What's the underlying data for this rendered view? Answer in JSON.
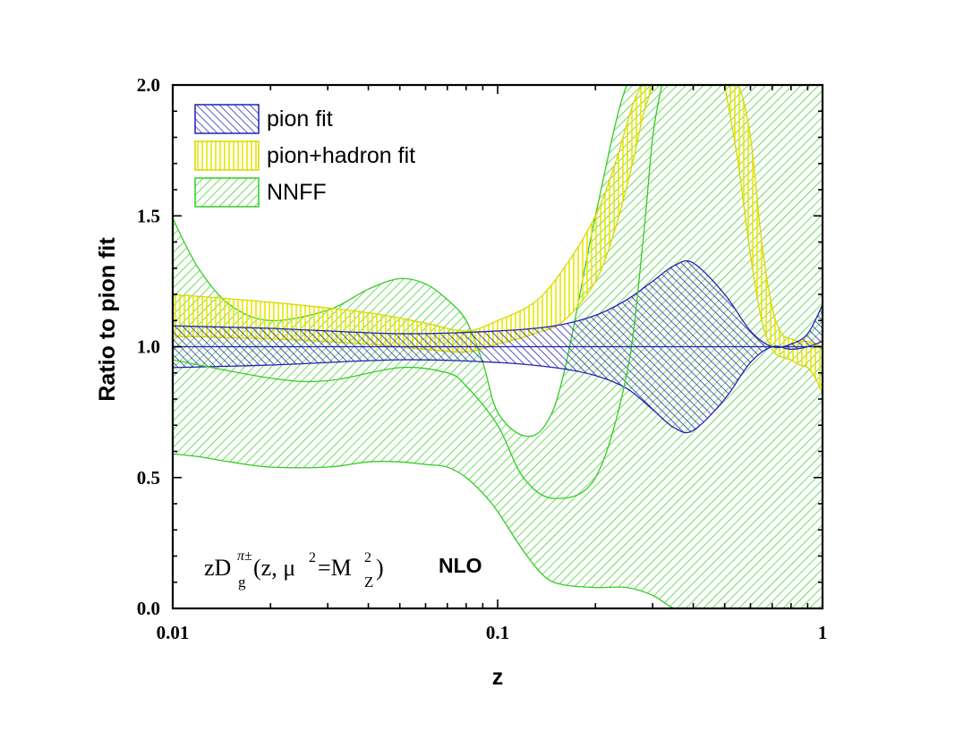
{
  "chart_data": {
    "type": "area",
    "title": "",
    "xlabel": "z",
    "ylabel": "Ratio to pion fit",
    "xscale": "log",
    "xlim": [
      0.01,
      1
    ],
    "ylim": [
      0.0,
      2.0
    ],
    "x_ticks": [
      "0.01",
      "0.1",
      "1"
    ],
    "y_ticks": [
      "0.0",
      "0.5",
      "1.0",
      "1.5",
      "2.0"
    ],
    "legend_position": "top-left",
    "colors": {
      "pion": "#1f22b4",
      "hadron": "#e8e800",
      "nnff": "#33cc22"
    },
    "series": [
      {
        "name": "pion fit",
        "color": "#1f22b4",
        "hatch": "diagonal",
        "x": [
          0.01,
          0.02,
          0.05,
          0.1,
          0.15,
          0.2,
          0.25,
          0.3,
          0.35,
          0.4,
          0.5,
          0.6,
          0.7,
          0.8,
          0.9,
          1.0
        ],
        "lower": [
          0.92,
          0.93,
          0.95,
          0.94,
          0.92,
          0.89,
          0.84,
          0.76,
          0.69,
          0.68,
          0.8,
          0.94,
          1.0,
          0.99,
          1.0,
          1.02
        ],
        "upper": [
          1.08,
          1.07,
          1.05,
          1.06,
          1.08,
          1.12,
          1.18,
          1.25,
          1.31,
          1.32,
          1.2,
          1.06,
          1.0,
          1.01,
          1.05,
          1.16
        ]
      },
      {
        "name": "pion+hadron fit",
        "color": "#e8e800",
        "hatch": "vertical",
        "x": [
          0.01,
          0.02,
          0.04,
          0.06,
          0.08,
          0.1,
          0.13,
          0.16,
          0.2,
          0.23,
          0.26,
          0.28,
          0.3
        ],
        "lower": [
          1.04,
          1.03,
          1.01,
          0.99,
          0.98,
          1.01,
          1.05,
          1.1,
          1.25,
          1.45,
          1.7,
          1.88,
          2.0
        ],
        "upper": [
          1.2,
          1.17,
          1.13,
          1.09,
          1.06,
          1.1,
          1.17,
          1.3,
          1.5,
          1.7,
          1.92,
          2.0,
          2.0
        ]
      },
      {
        "name": "pion+hadron fit",
        "color": "#e8e800",
        "hatch": "vertical",
        "x": [
          0.5,
          0.55,
          0.6,
          0.65,
          0.7,
          0.75,
          0.8,
          0.85,
          0.9,
          0.95,
          1.0
        ],
        "lower": [
          2.0,
          1.7,
          1.35,
          1.1,
          0.99,
          0.96,
          0.95,
          0.93,
          0.92,
          0.88,
          0.82
        ],
        "upper": [
          2.0,
          2.0,
          1.8,
          1.4,
          1.15,
          1.05,
          1.03,
          1.02,
          1.02,
          1.01,
          1.0
        ]
      },
      {
        "name": "NNFF",
        "color": "#33cc22",
        "hatch": "diagonal",
        "x": [
          0.01,
          0.012,
          0.015,
          0.02,
          0.03,
          0.04,
          0.05,
          0.06,
          0.07,
          0.08,
          0.09,
          0.1,
          0.12,
          0.14,
          0.16,
          0.2,
          0.25,
          0.3,
          0.35,
          0.4,
          0.5,
          0.6,
          0.7,
          0.8,
          0.9,
          1.0
        ],
        "lower": [
          0.59,
          0.58,
          0.56,
          0.54,
          0.54,
          0.56,
          0.56,
          0.55,
          0.54,
          0.5,
          0.44,
          0.37,
          0.22,
          0.12,
          0.09,
          0.08,
          0.08,
          0.05,
          0.0,
          0.0,
          0.0,
          0.0,
          0.0,
          0.0,
          0.0,
          0.0
        ],
        "upper": [
          1.49,
          1.3,
          1.16,
          1.1,
          1.14,
          1.22,
          1.26,
          1.24,
          1.18,
          1.1,
          0.94,
          0.75,
          0.66,
          0.7,
          0.9,
          1.5,
          2.0,
          2.0,
          2.0,
          2.0,
          2.0,
          2.0,
          2.0,
          2.0,
          2.0,
          2.0
        ]
      }
    ],
    "nnff_center": {
      "x": [
        0.01,
        0.02,
        0.03,
        0.05,
        0.07,
        0.08,
        0.1,
        0.12,
        0.15,
        0.2,
        0.25,
        0.28,
        0.3,
        0.32
      ],
      "y": [
        0.95,
        0.88,
        0.87,
        0.92,
        0.9,
        0.85,
        0.7,
        0.5,
        0.42,
        0.5,
        0.9,
        1.4,
        1.8,
        2.0
      ]
    },
    "reference_line": {
      "y": 1.0
    },
    "annotations": {
      "formula_prefix": "zD",
      "formula_sub": "g",
      "formula_sup": "π±",
      "formula_args": "(z, μ",
      "formula_mu_sup": "2",
      "formula_eq": "=M",
      "formula_m_sup": "2",
      "formula_m_sub": "Z",
      "formula_close": ")",
      "order": "NLO"
    }
  }
}
